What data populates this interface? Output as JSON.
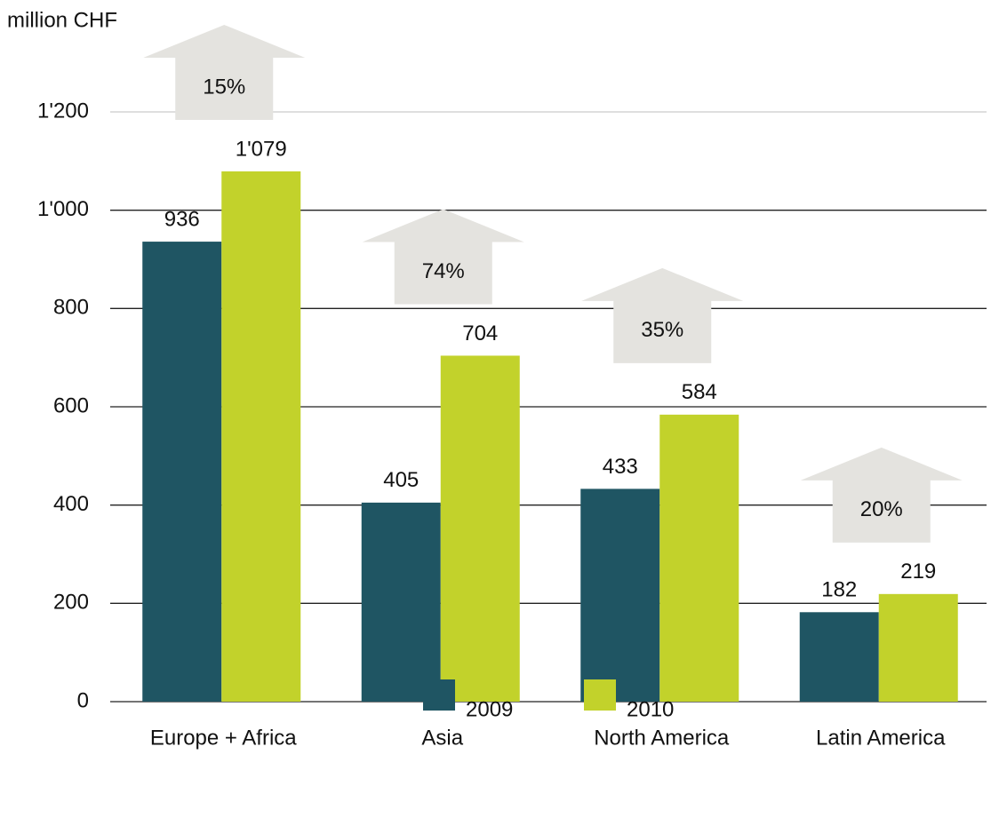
{
  "chart_data": {
    "type": "bar",
    "y_axis_label": "million CHF",
    "categories": [
      "Europe + Africa",
      "Asia",
      "North America",
      "Latin America"
    ],
    "series": [
      {
        "name": "2009",
        "color": "#1f5563",
        "values": [
          936,
          405,
          433,
          182
        ],
        "value_labels": [
          "936",
          "405",
          "433",
          "182"
        ]
      },
      {
        "name": "2010",
        "color": "#c2d22b",
        "values": [
          1079,
          704,
          584,
          219
        ],
        "value_labels": [
          "1'079",
          "704",
          "584",
          "219"
        ]
      }
    ],
    "growth": {
      "color": "#e4e3df",
      "values": [
        15,
        74,
        35,
        20
      ],
      "value_labels": [
        "15%",
        "74%",
        "35%",
        "20%"
      ]
    },
    "ylim": [
      0,
      1200
    ],
    "yticks": [
      0,
      200,
      400,
      600,
      800,
      {
        "value": 1000,
        "label": "1'000"
      },
      {
        "value": 1200,
        "label": "1'200"
      }
    ],
    "grid": true,
    "legend": "bottom"
  }
}
